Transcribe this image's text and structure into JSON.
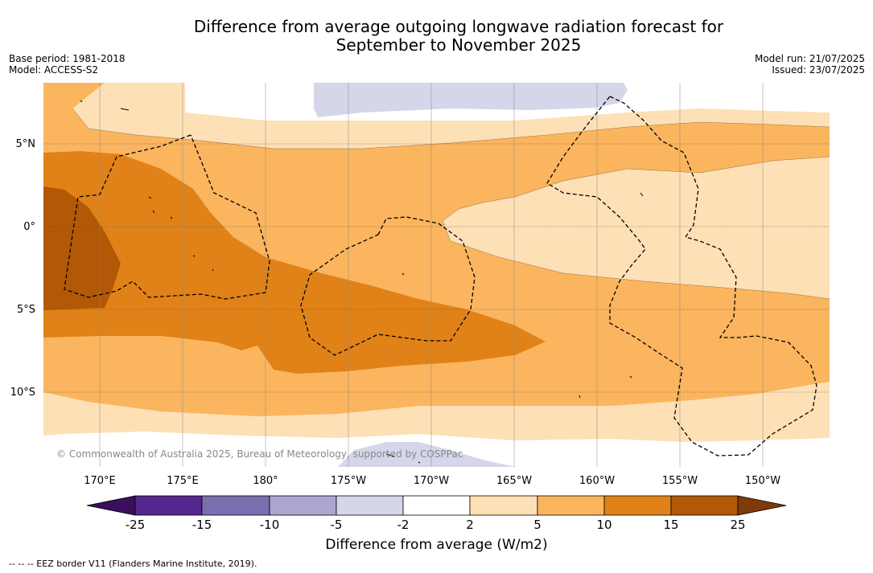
{
  "title_line1": "Difference from average outgoing longwave radiation forecast for",
  "title_line2": "September to November 2025",
  "base_period": "Base period: 1981-2018",
  "model": "Model: ACCESS-S2",
  "model_run": "Model run: 21/07/2025",
  "issued": "Issued: 23/07/2025",
  "copyright": "© Commonwealth of Australia 2025, Bureau of Meteorology, supported by COSPPac",
  "colorbar_title": "Difference from average (W/m2)",
  "footer": "-- -- -- EEZ border V11 (Flanders Marine Institute, 2019).",
  "lat_labels": [
    "5°N",
    "0°",
    "5°S",
    "10°S"
  ],
  "lon_labels": [
    "170°E",
    "175°E",
    "180°",
    "175°W",
    "170°W",
    "165°W",
    "160°W",
    "155°W",
    "150°W"
  ],
  "colorbar_ticks": [
    "-25",
    "-15",
    "-10",
    "-5",
    "-2",
    "2",
    "5",
    "10",
    "15",
    "25"
  ],
  "colors": {
    "lt_-25": "#3b0f5e",
    "-25_-15": "#54278f",
    "-15_-10": "#7b6eae",
    "-10_-5": "#aba6d0",
    "-5_-2": "#d6d6ea",
    "-2_2": "#ffffff",
    "2_5": "#fde0b5",
    "5_10": "#fbb55f",
    "10_15": "#e08218",
    "15_25": "#b35806",
    "gt_25": "#7f3b08"
  }
}
